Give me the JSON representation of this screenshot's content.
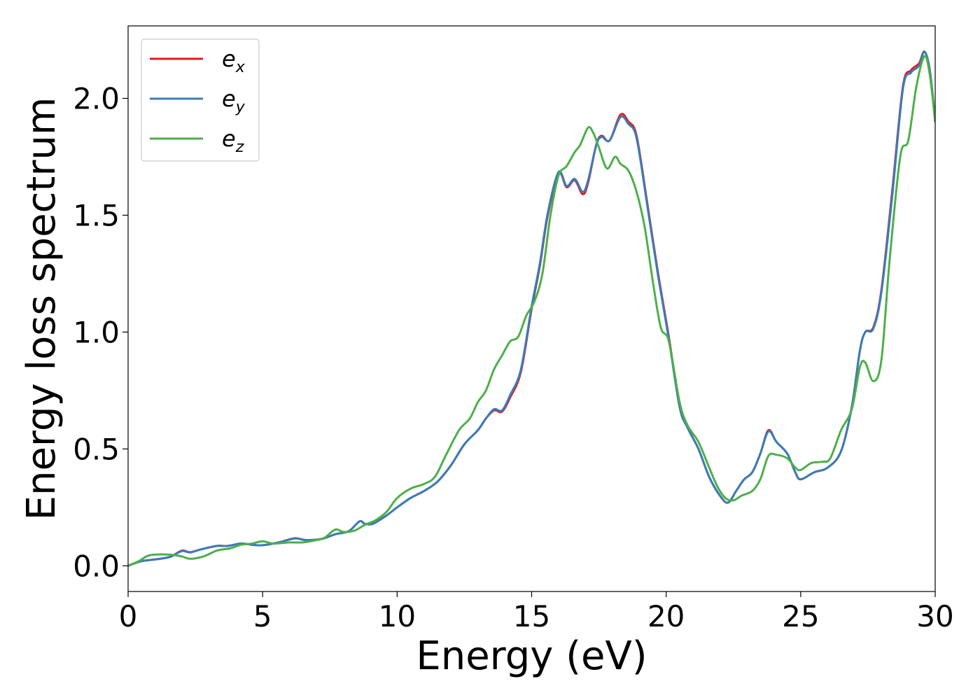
{
  "chart_data": {
    "type": "line",
    "xlabel": "Energy (eV)",
    "ylabel": "Energy loss spectrum",
    "xlim": [
      0,
      30
    ],
    "ylim": [
      -0.11,
      2.31
    ],
    "xticks": [
      0,
      5,
      10,
      15,
      20,
      25,
      30
    ],
    "xtick_labels": [
      "0",
      "5",
      "10",
      "15",
      "20",
      "25",
      "30"
    ],
    "yticks": [
      0.0,
      0.5,
      1.0,
      1.5,
      2.0
    ],
    "ytick_labels": [
      "0.0",
      "0.5",
      "1.0",
      "1.5",
      "2.0"
    ],
    "grid": false,
    "legend_position": "top-left",
    "series": [
      {
        "name": "e",
        "subscript": "x",
        "color": "#e41a1c",
        "points": [
          [
            0,
            0
          ],
          [
            0.5,
            0.02
          ],
          [
            1.2,
            0.03
          ],
          [
            1.6,
            0.04
          ],
          [
            2,
            0.065
          ],
          [
            2.3,
            0.058
          ],
          [
            2.7,
            0.07
          ],
          [
            3.3,
            0.085
          ],
          [
            3.7,
            0.085
          ],
          [
            4.2,
            0.095
          ],
          [
            4.6,
            0.09
          ],
          [
            5,
            0.088
          ],
          [
            5.6,
            0.1
          ],
          [
            6.2,
            0.118
          ],
          [
            6.6,
            0.11
          ],
          [
            7.2,
            0.115
          ],
          [
            7.7,
            0.135
          ],
          [
            8.2,
            0.148
          ],
          [
            8.6,
            0.19
          ],
          [
            8.8,
            0.18
          ],
          [
            9.1,
            0.18
          ],
          [
            9.6,
            0.215
          ],
          [
            10,
            0.25
          ],
          [
            10.5,
            0.29
          ],
          [
            11,
            0.32
          ],
          [
            11.5,
            0.36
          ],
          [
            12,
            0.43
          ],
          [
            12.5,
            0.52
          ],
          [
            13,
            0.58
          ],
          [
            13.3,
            0.63
          ],
          [
            13.6,
            0.665
          ],
          [
            13.9,
            0.66
          ],
          [
            14.2,
            0.72
          ],
          [
            14.6,
            0.83
          ],
          [
            15,
            1.1
          ],
          [
            15.3,
            1.28
          ],
          [
            15.6,
            1.5
          ],
          [
            16,
            1.68
          ],
          [
            16.3,
            1.62
          ],
          [
            16.6,
            1.65
          ],
          [
            16.9,
            1.59
          ],
          [
            17.1,
            1.64
          ],
          [
            17.4,
            1.8
          ],
          [
            17.6,
            1.84
          ],
          [
            17.9,
            1.82
          ],
          [
            18.3,
            1.93
          ],
          [
            18.6,
            1.9
          ],
          [
            18.9,
            1.84
          ],
          [
            19.3,
            1.55
          ],
          [
            19.7,
            1.25
          ],
          [
            20.1,
            0.98
          ],
          [
            20.5,
            0.68
          ],
          [
            20.8,
            0.59
          ],
          [
            21.2,
            0.5
          ],
          [
            21.6,
            0.38
          ],
          [
            22,
            0.3
          ],
          [
            22.3,
            0.27
          ],
          [
            22.6,
            0.32
          ],
          [
            22.9,
            0.37
          ],
          [
            23.2,
            0.4
          ],
          [
            23.5,
            0.48
          ],
          [
            23.8,
            0.58
          ],
          [
            24.1,
            0.53
          ],
          [
            24.5,
            0.48
          ],
          [
            24.8,
            0.4
          ],
          [
            25,
            0.37
          ],
          [
            25.5,
            0.4
          ],
          [
            26,
            0.42
          ],
          [
            26.5,
            0.49
          ],
          [
            26.9,
            0.68
          ],
          [
            27.2,
            0.92
          ],
          [
            27.4,
            1.0
          ],
          [
            27.7,
            1.02
          ],
          [
            28,
            1.18
          ],
          [
            28.4,
            1.6
          ],
          [
            28.8,
            2.05
          ],
          [
            29.1,
            2.12
          ],
          [
            29.4,
            2.15
          ],
          [
            29.6,
            2.2
          ],
          [
            29.8,
            2.12
          ],
          [
            30,
            1.9
          ]
        ]
      },
      {
        "name": "e",
        "subscript": "y",
        "color": "#377eb8",
        "points": [
          [
            0,
            0
          ],
          [
            0.5,
            0.02
          ],
          [
            1.2,
            0.03
          ],
          [
            1.6,
            0.04
          ],
          [
            2,
            0.063
          ],
          [
            2.3,
            0.057
          ],
          [
            2.7,
            0.07
          ],
          [
            3.3,
            0.085
          ],
          [
            3.7,
            0.085
          ],
          [
            4.2,
            0.095
          ],
          [
            4.6,
            0.09
          ],
          [
            5,
            0.088
          ],
          [
            5.6,
            0.1
          ],
          [
            6.2,
            0.117
          ],
          [
            6.6,
            0.11
          ],
          [
            7.2,
            0.115
          ],
          [
            7.7,
            0.135
          ],
          [
            8.2,
            0.148
          ],
          [
            8.6,
            0.19
          ],
          [
            8.8,
            0.18
          ],
          [
            9.1,
            0.18
          ],
          [
            9.6,
            0.215
          ],
          [
            10,
            0.25
          ],
          [
            10.5,
            0.29
          ],
          [
            11,
            0.32
          ],
          [
            11.5,
            0.36
          ],
          [
            12,
            0.43
          ],
          [
            12.5,
            0.52
          ],
          [
            13,
            0.58
          ],
          [
            13.3,
            0.63
          ],
          [
            13.6,
            0.67
          ],
          [
            13.9,
            0.665
          ],
          [
            14.2,
            0.73
          ],
          [
            14.6,
            0.84
          ],
          [
            15,
            1.11
          ],
          [
            15.3,
            1.29
          ],
          [
            15.6,
            1.51
          ],
          [
            16,
            1.685
          ],
          [
            16.3,
            1.625
          ],
          [
            16.6,
            1.655
          ],
          [
            16.9,
            1.6
          ],
          [
            17.1,
            1.65
          ],
          [
            17.4,
            1.8
          ],
          [
            17.6,
            1.835
          ],
          [
            17.9,
            1.82
          ],
          [
            18.3,
            1.92
          ],
          [
            18.6,
            1.89
          ],
          [
            18.9,
            1.83
          ],
          [
            19.3,
            1.54
          ],
          [
            19.7,
            1.24
          ],
          [
            20.1,
            0.97
          ],
          [
            20.5,
            0.68
          ],
          [
            20.8,
            0.59
          ],
          [
            21.2,
            0.5
          ],
          [
            21.6,
            0.38
          ],
          [
            22,
            0.3
          ],
          [
            22.3,
            0.27
          ],
          [
            22.6,
            0.32
          ],
          [
            22.9,
            0.37
          ],
          [
            23.2,
            0.4
          ],
          [
            23.5,
            0.48
          ],
          [
            23.8,
            0.575
          ],
          [
            24.1,
            0.53
          ],
          [
            24.5,
            0.48
          ],
          [
            24.8,
            0.4
          ],
          [
            25,
            0.37
          ],
          [
            25.5,
            0.4
          ],
          [
            26,
            0.42
          ],
          [
            26.5,
            0.49
          ],
          [
            26.9,
            0.68
          ],
          [
            27.2,
            0.92
          ],
          [
            27.4,
            1.0
          ],
          [
            27.7,
            1.015
          ],
          [
            28,
            1.17
          ],
          [
            28.4,
            1.58
          ],
          [
            28.8,
            2.04
          ],
          [
            29.1,
            2.11
          ],
          [
            29.4,
            2.14
          ],
          [
            29.6,
            2.2
          ],
          [
            29.8,
            2.12
          ],
          [
            30,
            1.9
          ]
        ]
      },
      {
        "name": "e",
        "subscript": "z",
        "color": "#4daf4a",
        "points": [
          [
            0,
            0
          ],
          [
            0.4,
            0.02
          ],
          [
            0.8,
            0.045
          ],
          [
            1.5,
            0.048
          ],
          [
            2,
            0.04
          ],
          [
            2.3,
            0.03
          ],
          [
            2.8,
            0.04
          ],
          [
            3.3,
            0.065
          ],
          [
            3.8,
            0.075
          ],
          [
            4.2,
            0.09
          ],
          [
            4.6,
            0.095
          ],
          [
            5,
            0.105
          ],
          [
            5.4,
            0.095
          ],
          [
            6,
            0.1
          ],
          [
            6.5,
            0.1
          ],
          [
            7,
            0.11
          ],
          [
            7.3,
            0.12
          ],
          [
            7.7,
            0.155
          ],
          [
            8,
            0.145
          ],
          [
            8.4,
            0.15
          ],
          [
            8.8,
            0.175
          ],
          [
            9.2,
            0.195
          ],
          [
            9.6,
            0.23
          ],
          [
            10,
            0.29
          ],
          [
            10.5,
            0.33
          ],
          [
            11,
            0.35
          ],
          [
            11.4,
            0.38
          ],
          [
            11.8,
            0.47
          ],
          [
            12.3,
            0.58
          ],
          [
            12.7,
            0.63
          ],
          [
            13,
            0.7
          ],
          [
            13.3,
            0.75
          ],
          [
            13.6,
            0.84
          ],
          [
            13.9,
            0.9
          ],
          [
            14.2,
            0.96
          ],
          [
            14.5,
            0.98
          ],
          [
            14.8,
            1.07
          ],
          [
            15.1,
            1.13
          ],
          [
            15.4,
            1.25
          ],
          [
            15.7,
            1.5
          ],
          [
            16,
            1.67
          ],
          [
            16.3,
            1.71
          ],
          [
            16.6,
            1.77
          ],
          [
            16.8,
            1.8
          ],
          [
            17.1,
            1.875
          ],
          [
            17.3,
            1.85
          ],
          [
            17.5,
            1.79
          ],
          [
            17.8,
            1.7
          ],
          [
            18.1,
            1.75
          ],
          [
            18.3,
            1.72
          ],
          [
            18.6,
            1.69
          ],
          [
            18.9,
            1.6
          ],
          [
            19.2,
            1.45
          ],
          [
            19.5,
            1.22
          ],
          [
            19.8,
            1.02
          ],
          [
            20.1,
            0.96
          ],
          [
            20.5,
            0.7
          ],
          [
            20.8,
            0.6
          ],
          [
            21.2,
            0.53
          ],
          [
            21.6,
            0.42
          ],
          [
            21.9,
            0.34
          ],
          [
            22.2,
            0.29
          ],
          [
            22.5,
            0.28
          ],
          [
            22.8,
            0.3
          ],
          [
            23.2,
            0.32
          ],
          [
            23.5,
            0.37
          ],
          [
            23.8,
            0.47
          ],
          [
            24.1,
            0.475
          ],
          [
            24.5,
            0.46
          ],
          [
            24.8,
            0.42
          ],
          [
            25,
            0.41
          ],
          [
            25.4,
            0.44
          ],
          [
            25.8,
            0.445
          ],
          [
            26.1,
            0.46
          ],
          [
            26.5,
            0.58
          ],
          [
            26.9,
            0.67
          ],
          [
            27.2,
            0.85
          ],
          [
            27.4,
            0.87
          ],
          [
            27.7,
            0.79
          ],
          [
            28,
            0.88
          ],
          [
            28.3,
            1.3
          ],
          [
            28.7,
            1.75
          ],
          [
            29,
            1.82
          ],
          [
            29.3,
            2.05
          ],
          [
            29.6,
            2.18
          ],
          [
            29.8,
            2.1
          ],
          [
            30,
            1.9
          ]
        ]
      }
    ]
  }
}
